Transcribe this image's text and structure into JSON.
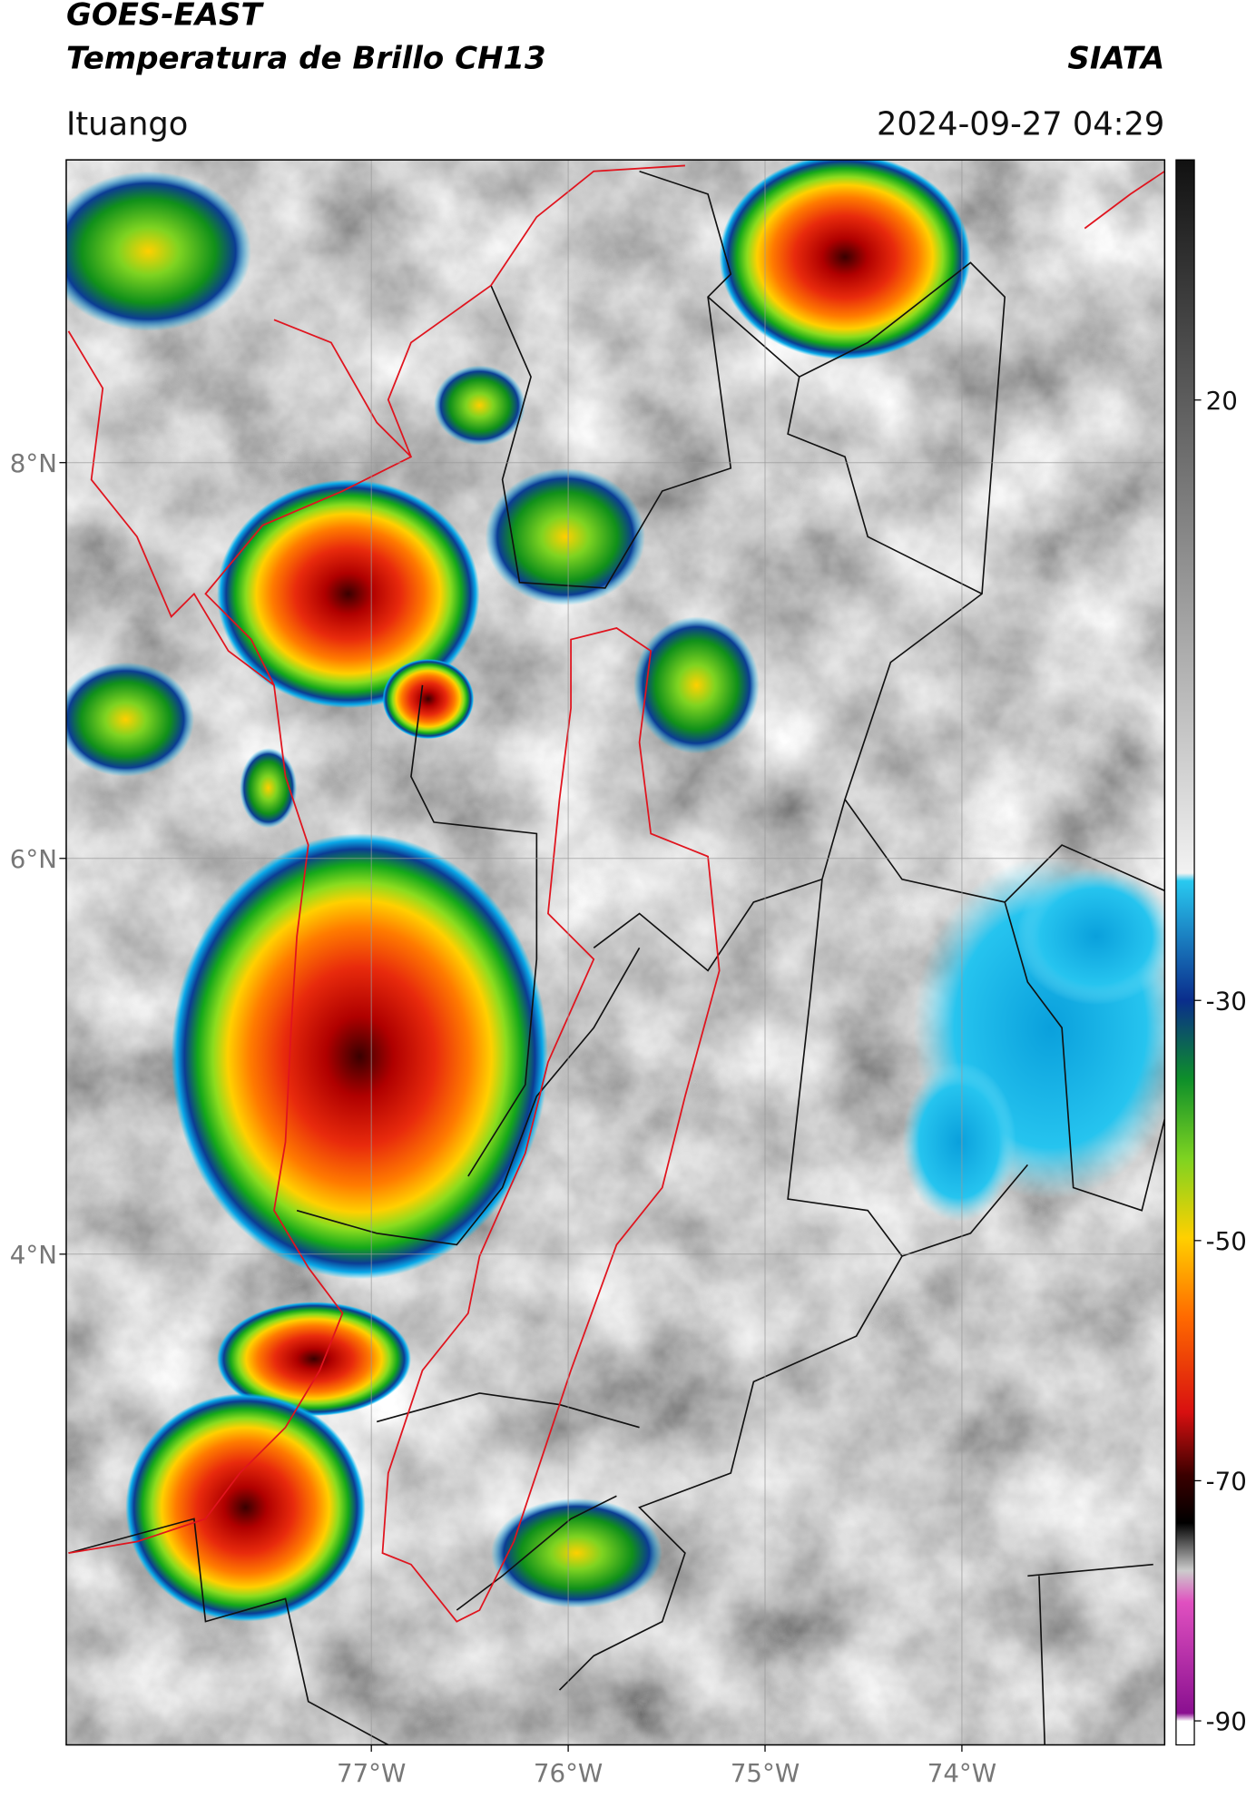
{
  "header": {
    "title": "GOES-EAST",
    "subtitle": "Temperatura de Brillo CH13",
    "source": "SIATA",
    "location": "Ituango",
    "datetime": "2024-09-27 04:29"
  },
  "map": {
    "lonlim": [
      -78.55,
      -72.97
    ],
    "latlim": [
      1.52,
      9.53
    ],
    "lon_ticks": [
      {
        "value": -77,
        "label": "77°W"
      },
      {
        "value": -76,
        "label": "76°W"
      },
      {
        "value": -75,
        "label": "75°W"
      },
      {
        "value": -74,
        "label": "74°W"
      }
    ],
    "lat_ticks": [
      {
        "value": 8,
        "label": "8°N"
      },
      {
        "value": 6,
        "label": "6°N"
      },
      {
        "value": 4,
        "label": "4°N"
      }
    ]
  },
  "colorbar": {
    "lim": [
      -92,
      40
    ],
    "ticks": [
      20,
      -30,
      -50,
      -70,
      -90
    ]
  }
}
